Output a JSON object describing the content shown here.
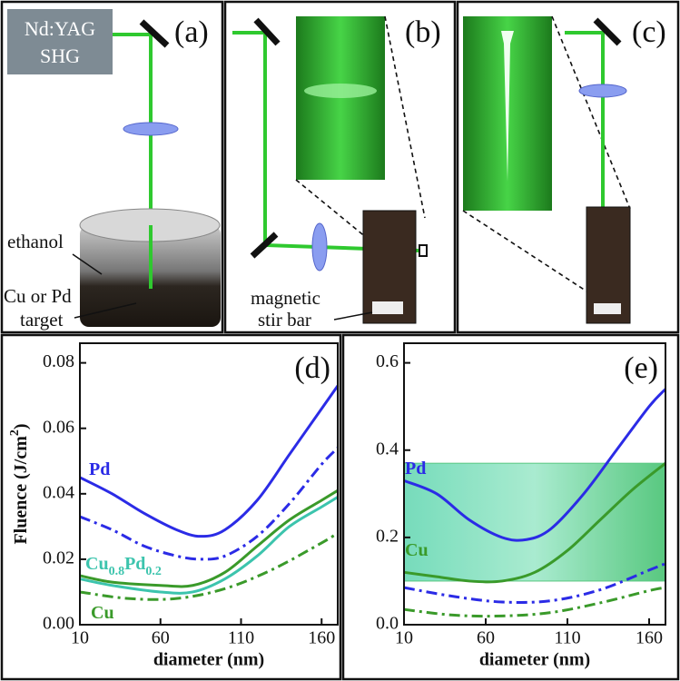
{
  "diagram": {
    "panel_a": {
      "label": "(a)",
      "source": [
        "Nd:YAG",
        "SHG"
      ],
      "liquid": "ethanol",
      "target": [
        "Cu or Pd",
        "target"
      ]
    },
    "panel_b": {
      "label": "(b)",
      "stirrer": [
        "magnetic",
        "stir bar"
      ]
    },
    "panel_c": {
      "label": "(c)"
    }
  },
  "chart_data": [
    {
      "type": "line",
      "panel_label": "(d)",
      "xlabel": "diameter (nm)",
      "ylabel": "Fluence (J/cm2)",
      "xlim": [
        10,
        170
      ],
      "xticks": [
        10,
        60,
        110,
        160
      ],
      "ylim": [
        0,
        0.086
      ],
      "yticks": [
        {
          "value": 0,
          "label": "0.00"
        },
        0.02,
        0.04,
        0.06,
        0.08
      ],
      "series": [
        {
          "name": "Pd",
          "color": "#2b2be6",
          "linestyle": "solid",
          "x": [
            10,
            30,
            50,
            70,
            85,
            100,
            120,
            140,
            160,
            170
          ],
          "values": [
            0.045,
            0.04,
            0.034,
            0.029,
            0.027,
            0.029,
            0.038,
            0.052,
            0.066,
            0.073
          ]
        },
        {
          "color": "#2b2be6",
          "linestyle": "dashdot",
          "x": [
            10,
            30,
            50,
            70,
            85,
            100,
            120,
            140,
            160,
            170
          ],
          "values": [
            0.033,
            0.029,
            0.024,
            0.021,
            0.02,
            0.021,
            0.027,
            0.037,
            0.049,
            0.054
          ]
        },
        {
          "name": "Cu0.8Pd0.2",
          "color": "#3cc4ad",
          "linestyle": "solid",
          "x": [
            10,
            30,
            60,
            80,
            100,
            120,
            140,
            160,
            170
          ],
          "values": [
            0.014,
            0.012,
            0.01,
            0.01,
            0.014,
            0.021,
            0.03,
            0.036,
            0.039
          ]
        },
        {
          "name": "Cu",
          "color": "#3a9a2a",
          "linestyle": "solid",
          "x": [
            10,
            30,
            60,
            80,
            100,
            120,
            140,
            160,
            170
          ],
          "values": [
            0.015,
            0.013,
            0.012,
            0.012,
            0.016,
            0.024,
            0.032,
            0.038,
            0.041
          ]
        },
        {
          "color": "#3a9a2a",
          "linestyle": "dashdot",
          "x": [
            10,
            40,
            70,
            100,
            130,
            160,
            170
          ],
          "values": [
            0.01,
            0.008,
            0.008,
            0.011,
            0.017,
            0.025,
            0.028
          ]
        }
      ]
    },
    {
      "type": "line",
      "panel_label": "(e)",
      "xlabel": "diameter (nm)",
      "xlim": [
        10,
        170
      ],
      "xticks": [
        10,
        60,
        110,
        160
      ],
      "ylim": [
        0,
        0.645
      ],
      "yticks": [
        {
          "value": 0,
          "label": "0.0"
        },
        0.2,
        0.4,
        0.6
      ],
      "band": [
        0.1,
        0.37
      ],
      "band_color": "#3cbf6a",
      "series": [
        {
          "name": "Pd",
          "color": "#2b2be6",
          "linestyle": "solid",
          "x": [
            10,
            30,
            50,
            70,
            85,
            100,
            120,
            140,
            160,
            170
          ],
          "values": [
            0.33,
            0.3,
            0.24,
            0.2,
            0.195,
            0.22,
            0.3,
            0.4,
            0.5,
            0.54
          ]
        },
        {
          "name": "Cu",
          "color": "#3a9a2a",
          "linestyle": "solid",
          "x": [
            10,
            30,
            50,
            70,
            90,
            110,
            130,
            150,
            170
          ],
          "values": [
            0.12,
            0.11,
            0.1,
            0.1,
            0.12,
            0.17,
            0.24,
            0.31,
            0.37
          ]
        },
        {
          "color": "#2b2be6",
          "linestyle": "dashdot",
          "x": [
            10,
            40,
            70,
            100,
            130,
            160,
            170
          ],
          "values": [
            0.085,
            0.065,
            0.052,
            0.055,
            0.08,
            0.125,
            0.14
          ]
        },
        {
          "color": "#3a9a2a",
          "linestyle": "dashdot",
          "x": [
            10,
            40,
            70,
            100,
            130,
            160,
            170
          ],
          "values": [
            0.035,
            0.022,
            0.02,
            0.028,
            0.05,
            0.078,
            0.085
          ]
        }
      ]
    }
  ]
}
